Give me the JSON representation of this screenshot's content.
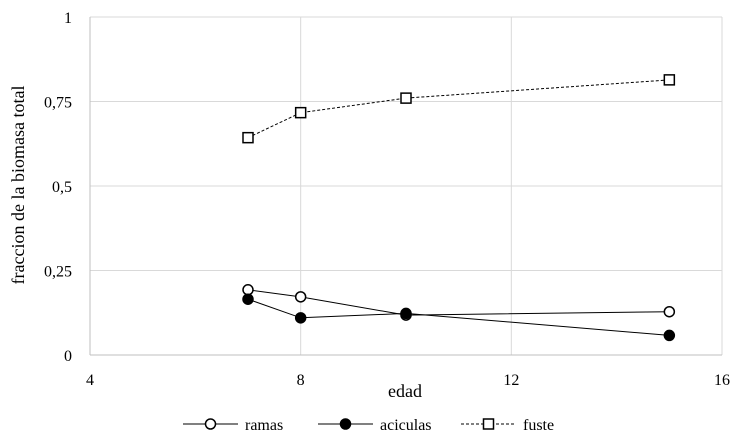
{
  "chart_data": {
    "type": "line",
    "title": "",
    "xlabel": "edad",
    "ylabel": "fraccion de la biomasa total",
    "xlim": [
      4,
      16
    ],
    "ylim": [
      0,
      1
    ],
    "x_ticks": [
      4,
      8,
      12,
      16
    ],
    "x_tick_labels": [
      "4",
      "8",
      "12",
      "16"
    ],
    "y_ticks": [
      0,
      0.25,
      0.5,
      0.75,
      1
    ],
    "y_tick_labels": [
      "0",
      "0,25",
      "0,5",
      "0,75",
      "1"
    ],
    "grid": true,
    "legend_position": "bottom",
    "series": [
      {
        "name": "ramas",
        "marker": "open-circle",
        "line_style": "solid",
        "x": [
          7,
          8,
          10,
          15
        ],
        "y": [
          0.193,
          0.172,
          0.118,
          0.128
        ]
      },
      {
        "name": "aciculas",
        "marker": "filled-circle",
        "line_style": "solid",
        "x": [
          7,
          8,
          10,
          15
        ],
        "y": [
          0.165,
          0.11,
          0.123,
          0.058
        ]
      },
      {
        "name": "fuste",
        "marker": "open-square",
        "line_style": "dashed",
        "x": [
          7,
          8,
          10,
          15
        ],
        "y": [
          0.643,
          0.717,
          0.76,
          0.814
        ]
      }
    ],
    "colors": {
      "line": "#000000",
      "grid": "#d9d9d9",
      "axis": "#bfbfbf"
    }
  }
}
